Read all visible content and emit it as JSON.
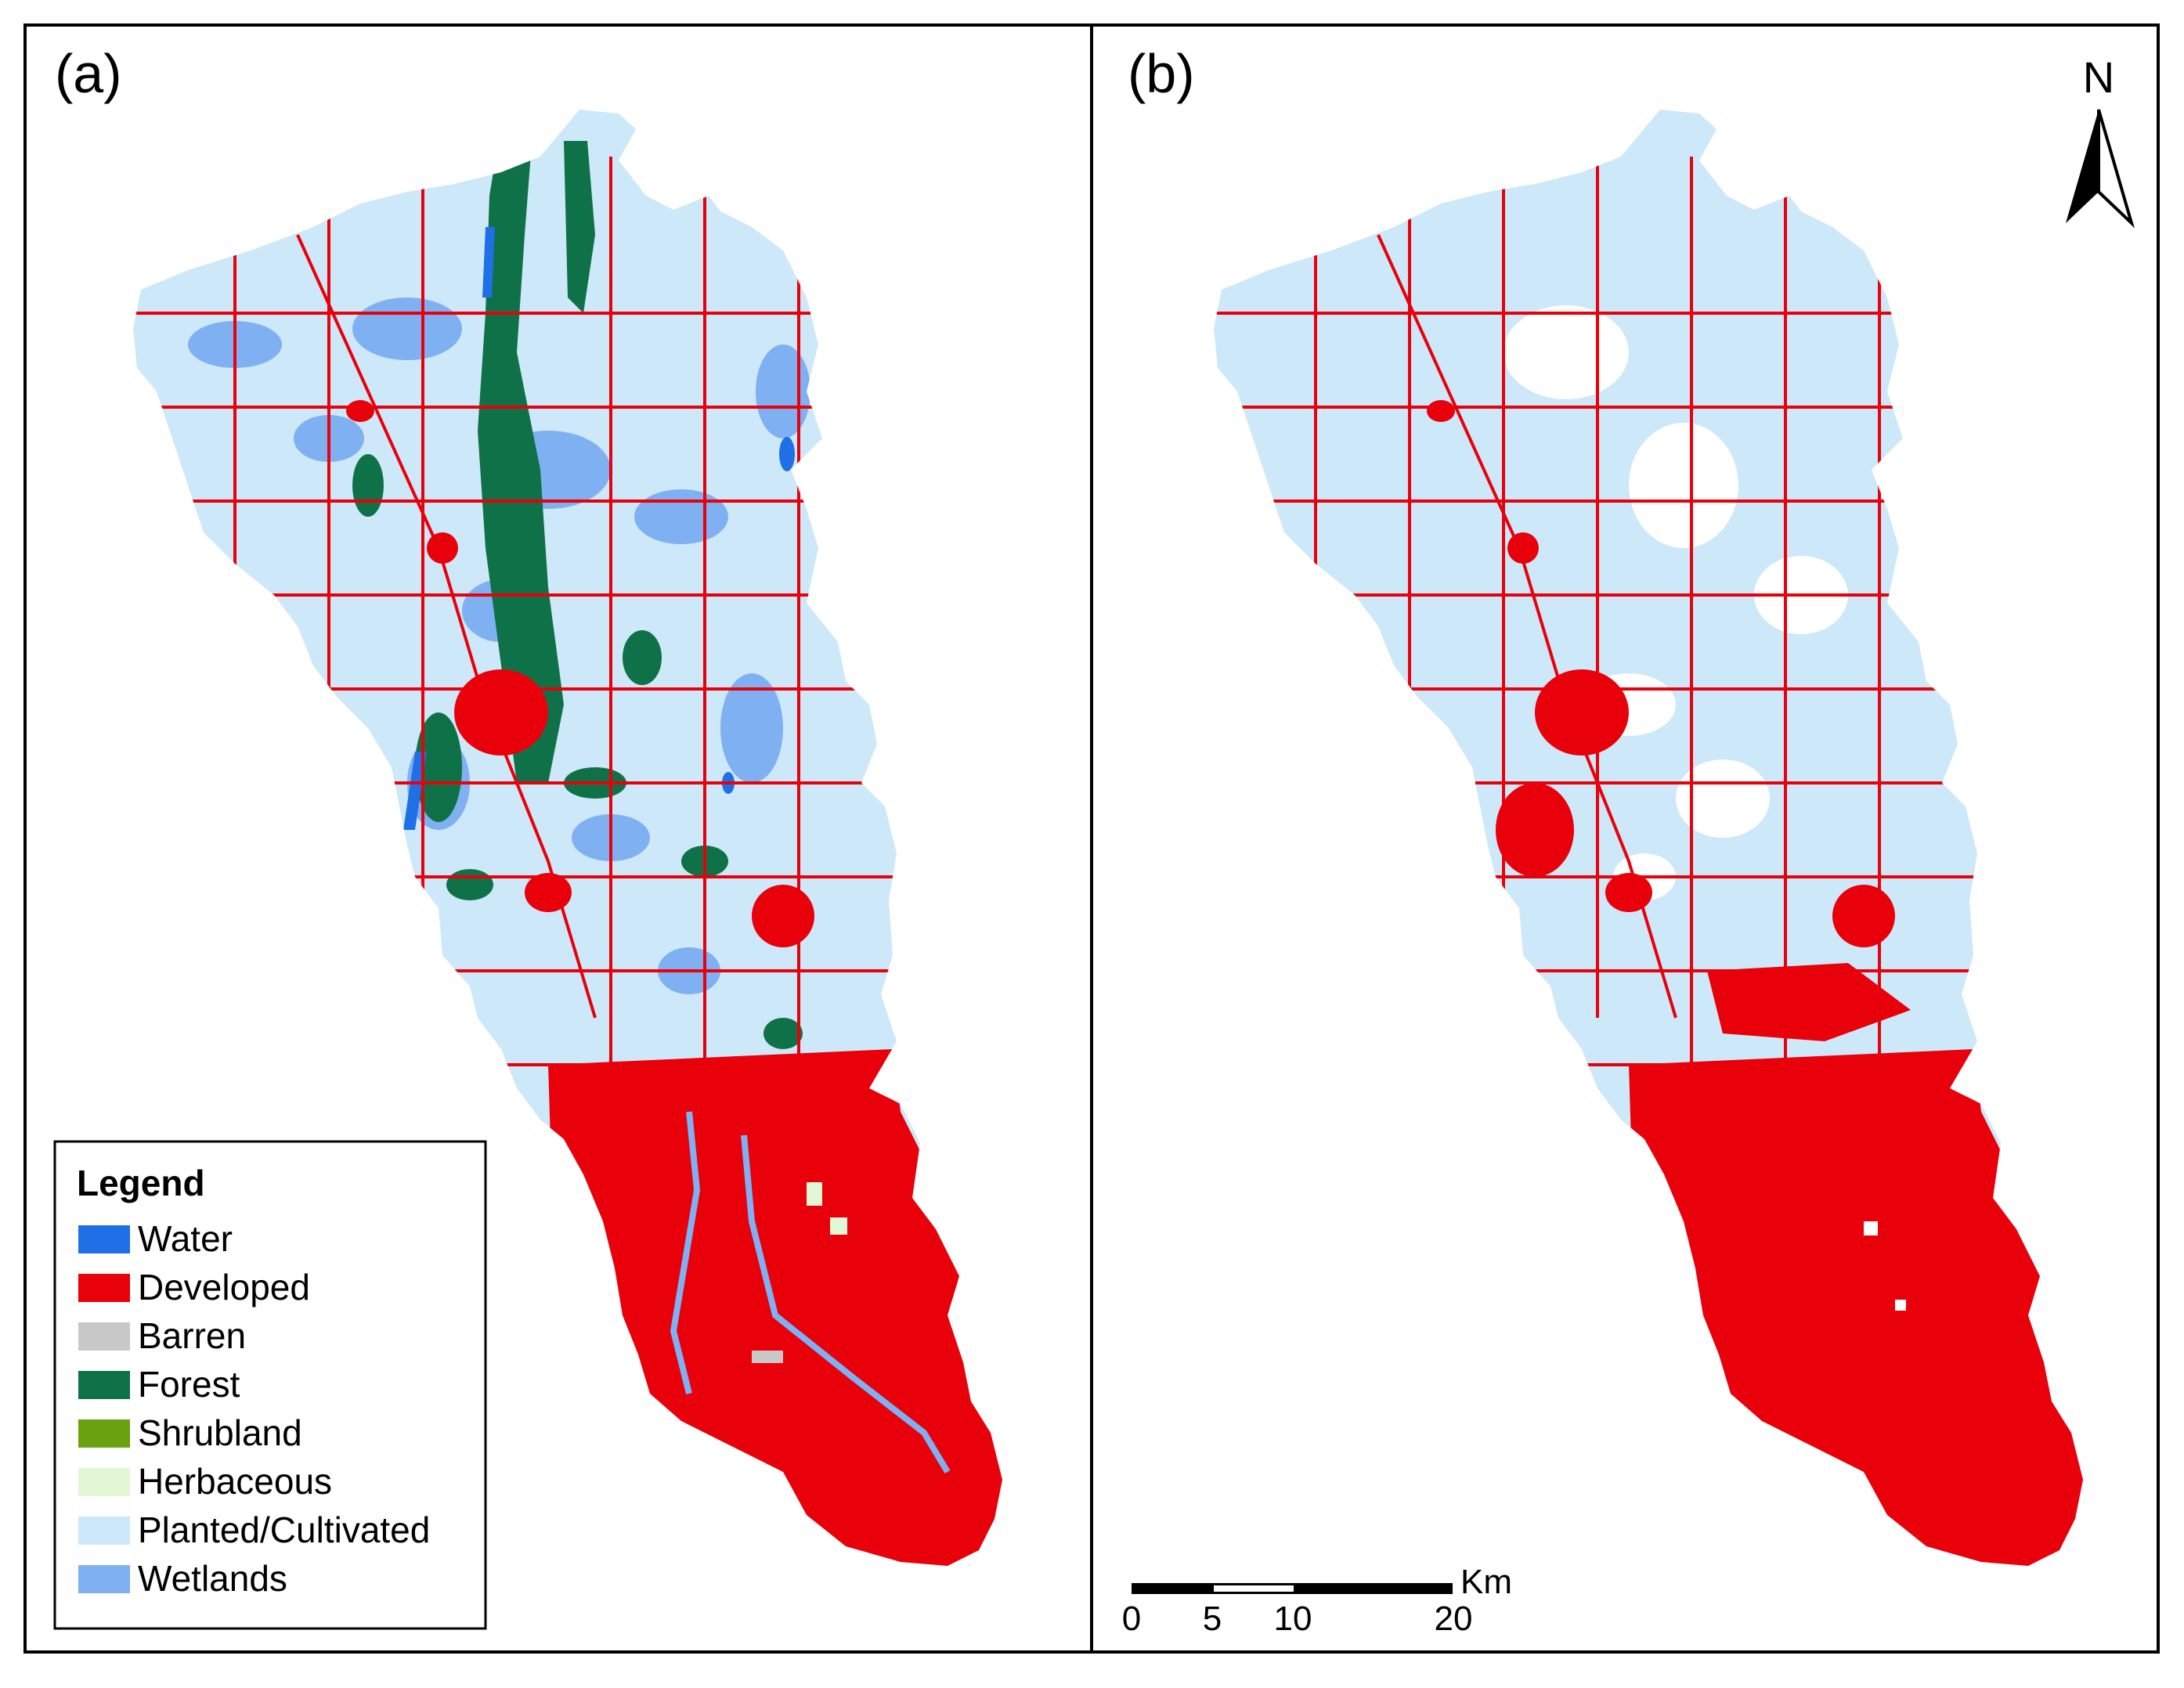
{
  "panels": [
    {
      "label": "(a)",
      "content": "land cover classification map"
    },
    {
      "label": "(b)",
      "content": "developed vs planted/cultivated map"
    }
  ],
  "legend": {
    "title": "Legend",
    "items": [
      {
        "label": "Water",
        "color": "#1f6fe6"
      },
      {
        "label": "Developed",
        "color": "#e8000b"
      },
      {
        "label": "Barren",
        "color": "#c8c8c8"
      },
      {
        "label": "Forest",
        "color": "#0f7148"
      },
      {
        "label": "Shrubland",
        "color": "#6aa110"
      },
      {
        "label": "Herbaceous",
        "color": "#e2f7d6"
      },
      {
        "label": "Planted/Cultivated",
        "color": "#cde8f8"
      },
      {
        "label": "Wetlands",
        "color": "#7fb0f2"
      }
    ]
  },
  "north_arrow": {
    "label": "N"
  },
  "scale_bar": {
    "unit": "Km",
    "ticks": [
      "0",
      "5",
      "10",
      "20"
    ]
  }
}
